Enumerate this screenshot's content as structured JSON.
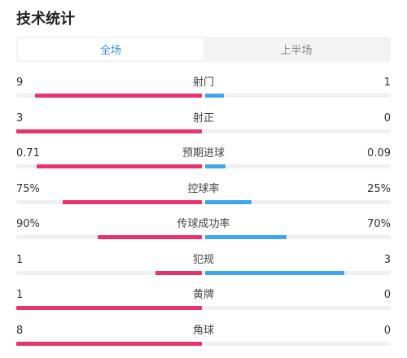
{
  "page": {
    "title": "技术统计"
  },
  "tabs": [
    {
      "label": "全场",
      "active": true
    },
    {
      "label": "上半场",
      "active": false
    }
  ],
  "colors": {
    "home": "#e8336b",
    "away": "#3fa5ec",
    "accent": "#3a8ee6"
  },
  "stats": [
    {
      "label": "射门",
      "home": "9",
      "away": "1",
      "home_frac": 0.9,
      "away_frac": 0.1
    },
    {
      "label": "射正",
      "home": "3",
      "away": "0",
      "home_frac": 1.0,
      "away_frac": 0.0
    },
    {
      "label": "预期进球",
      "home": "0.71",
      "away": "0.09",
      "home_frac": 0.89,
      "away_frac": 0.11
    },
    {
      "label": "控球率",
      "home": "75%",
      "away": "25%",
      "home_frac": 0.75,
      "away_frac": 0.25
    },
    {
      "label": "传球成功率",
      "home": "90%",
      "away": "70%",
      "home_frac": 0.56,
      "away_frac": 0.44
    },
    {
      "label": "犯规",
      "home": "1",
      "away": "3",
      "home_frac": 0.25,
      "away_frac": 0.75
    },
    {
      "label": "黄牌",
      "home": "1",
      "away": "0",
      "home_frac": 1.0,
      "away_frac": 0.0
    },
    {
      "label": "角球",
      "home": "8",
      "away": "0",
      "home_frac": 1.0,
      "away_frac": 0.0
    }
  ]
}
